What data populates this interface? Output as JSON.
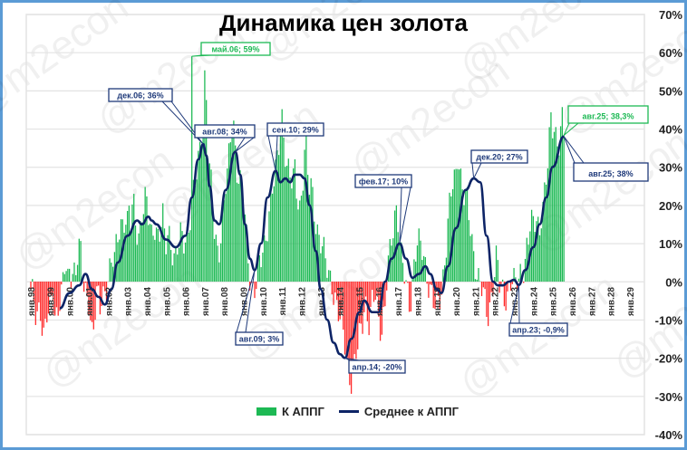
{
  "title": "Динамика цен золота",
  "legend": {
    "bars": "К АППГ",
    "line": "Среднее к АППГ"
  },
  "watermark": "@m2econ",
  "colors": {
    "positive_bar": "#1db954",
    "negative_bar": "#ff2a2a",
    "line": "#0d2466",
    "grid": "#e3e3e3",
    "border": "#5b9bd5",
    "ann_green": "#1db954",
    "ann_navy": "#1f3a7a"
  },
  "chart_data": {
    "type": "bar",
    "title": "Динамика цен золота",
    "xlabel": "",
    "ylabel": "",
    "ylim": [
      -40,
      70
    ],
    "yticks": [
      "70%",
      "60%",
      "50%",
      "40%",
      "30%",
      "20%",
      "10%",
      "0%",
      "-10%",
      "-20%",
      "-30%",
      "-40%"
    ],
    "y_axis_position": "right",
    "grid": true,
    "legend_position": "bottom",
    "x_ticks": [
      "янв.98",
      "янв.99",
      "янв.00",
      "янв.01",
      "янв.02",
      "янв.03",
      "янв.04",
      "янв.05",
      "янв.06",
      "янв.07",
      "янв.08",
      "янв.09",
      "янв.10",
      "янв.11",
      "янв.12",
      "янв.13",
      "янв.14",
      "янв.15",
      "янв.16",
      "янв.17",
      "янв.18",
      "янв.19",
      "янв.20",
      "янв.21",
      "янв.22",
      "янв.23",
      "янв.24",
      "янв.25",
      "янв.26",
      "янв.27",
      "янв.28",
      "янв.29"
    ],
    "x_start": "янв.98",
    "frequency": "monthly",
    "series": [
      {
        "name": "К АППГ",
        "type": "bar",
        "yearly_values": [
          [
            -2,
            -4,
            -8,
            -12,
            -9,
            -6,
            -10,
            -13,
            -9,
            -7,
            -11,
            -5
          ],
          [
            -6,
            -10,
            -8,
            -4,
            -3,
            -1,
            4,
            2,
            -2,
            3,
            1,
            4
          ],
          [
            4,
            8,
            9,
            7,
            -2,
            -4,
            -5,
            -3,
            -8,
            -12,
            -10,
            -6
          ],
          [
            -3,
            -9,
            -6,
            -4,
            -2,
            1,
            3,
            5,
            6,
            4,
            8,
            12
          ],
          [
            14,
            16,
            18,
            17,
            15,
            19,
            13,
            20,
            18,
            14,
            12,
            16
          ],
          [
            20,
            18,
            22,
            17,
            14,
            12,
            15,
            16,
            13,
            12,
            14,
            16
          ],
          [
            11,
            9,
            14,
            12,
            10,
            7,
            6,
            8,
            9,
            12,
            10,
            12
          ],
          [
            13,
            15,
            18,
            20,
            24,
            26,
            30,
            35,
            40,
            45,
            59,
            38
          ],
          [
            30,
            25,
            18,
            12,
            10,
            8,
            12,
            16,
            20,
            25,
            28,
            33
          ],
          [
            40,
            44,
            36,
            30,
            28,
            25,
            22,
            18,
            12,
            6,
            2,
            0
          ],
          [
            -2,
            -1,
            1,
            3,
            5,
            8,
            10,
            14,
            18,
            22,
            24,
            26
          ],
          [
            28,
            32,
            38,
            45,
            40,
            35,
            30,
            28,
            26,
            24,
            30,
            25
          ],
          [
            22,
            20,
            25,
            30,
            40,
            27,
            24,
            25,
            22,
            18,
            15,
            12
          ],
          [
            10,
            8,
            6,
            4,
            3,
            2,
            1,
            -2,
            -5,
            -8,
            -10,
            -12
          ],
          [
            -13,
            -15,
            -18,
            -22,
            -25,
            -27,
            -24,
            -20,
            -18,
            -14,
            -10,
            -8
          ],
          [
            -4,
            -8,
            -12,
            -10,
            -6,
            -4,
            -3,
            -8,
            -10,
            -12,
            -9,
            -6
          ],
          [
            2,
            5,
            10,
            14,
            18,
            21,
            16,
            8,
            4,
            1,
            -2,
            -4
          ],
          [
            -6,
            -2,
            4,
            8,
            10,
            9,
            8,
            7,
            5,
            3,
            1,
            -1
          ],
          [
            -3,
            -6,
            -8,
            -7,
            -5,
            -3,
            2,
            8,
            12,
            18,
            22,
            24
          ],
          [
            25,
            28,
            35,
            30,
            27,
            24,
            22,
            20,
            15,
            12,
            8,
            6
          ],
          [
            4,
            2,
            0,
            -2,
            -5,
            -9,
            -10,
            -7,
            -3,
            2,
            5,
            8
          ],
          [
            -1,
            -3,
            -4,
            -6,
            -3,
            -2,
            1,
            2,
            0,
            -2,
            -1,
            0
          ],
          [
            2,
            4,
            6,
            10,
            12,
            15,
            14,
            13,
            17,
            15,
            14,
            20
          ],
          [
            22,
            24,
            28,
            35,
            41,
            40,
            42,
            38,
            36,
            40,
            42,
            38
          ]
        ],
        "note": "values approximate, read off chart; rows correspond to groups of months from янв.98 onward compressed at ~14-month resolution"
      },
      {
        "name": "Среднее к АППГ",
        "type": "line"
      }
    ],
    "annotations": [
      {
        "label": "май.06; 59%",
        "series": "К АППГ",
        "x": "май.06",
        "value": 59,
        "color": "green"
      },
      {
        "label": "дек.06; 36%",
        "series": "Среднее к АППГ",
        "x": "дек.06",
        "value": 36,
        "color": "navy"
      },
      {
        "label": "авг.08; 34%",
        "series": "Среднее к АППГ",
        "x": "авг.08",
        "value": 34,
        "color": "navy"
      },
      {
        "label": "авг.09; 3%",
        "series": "Среднее к АППГ",
        "x": "авг.09",
        "value": 3,
        "color": "navy"
      },
      {
        "label": "сен.10; 29%",
        "series": "Среднее к АППГ",
        "x": "сен.10",
        "value": 29,
        "color": "navy"
      },
      {
        "label": "апр.14; -20%",
        "series": "Среднее к АППГ",
        "x": "апр.14",
        "value": -20,
        "color": "navy"
      },
      {
        "label": "фев.17; 10%",
        "series": "Среднее к АППГ",
        "x": "фев.17",
        "value": 10,
        "color": "navy"
      },
      {
        "label": "дек.20; 27%",
        "series": "Среднее к АППГ",
        "x": "дек.20",
        "value": 27,
        "color": "navy"
      },
      {
        "label": "апр.23; -0,9%",
        "series": "Среднее к АППГ",
        "x": "апр.23",
        "value": -0.9,
        "color": "navy"
      },
      {
        "label": "авг.25; 38,3%",
        "series": "К АППГ",
        "x": "авг.25",
        "value": 38.3,
        "color": "green"
      },
      {
        "label": "авг.25; 38%",
        "series": "Среднее к АППГ",
        "x": "авг.25",
        "value": 38,
        "color": "navy"
      }
    ],
    "line_points": [
      [
        "июл.99",
        -7
      ],
      [
        "янв.00",
        -3
      ],
      [
        "июл.00",
        -1
      ],
      [
        "ноя.00",
        2
      ],
      [
        "мар.01",
        -2
      ],
      [
        "июл.01",
        -4
      ],
      [
        "ноя.01",
        -6
      ],
      [
        "мар.02",
        -2
      ],
      [
        "июл.02",
        5
      ],
      [
        "янв.03",
        12
      ],
      [
        "июл.03",
        16
      ],
      [
        "окт.03",
        15
      ],
      [
        "фев.04",
        17
      ],
      [
        "апр.04",
        16
      ],
      [
        "июл.04",
        15
      ],
      [
        "янв.05",
        11
      ],
      [
        "июл.05",
        9
      ],
      [
        "янв.06",
        12
      ],
      [
        "май.06",
        22
      ],
      [
        "сен.06",
        32
      ],
      [
        "дек.06",
        36
      ],
      [
        "фев.07",
        33
      ],
      [
        "апр.07",
        25
      ],
      [
        "июл.07",
        16
      ],
      [
        "окт.07",
        15
      ],
      [
        "фев.08",
        24
      ],
      [
        "авг.08",
        34
      ],
      [
        "ноя.08",
        28
      ],
      [
        "фев.09",
        15
      ],
      [
        "май.09",
        6
      ],
      [
        "авг.09",
        3
      ],
      [
        "дек.09",
        10
      ],
      [
        "апр.10",
        22
      ],
      [
        "сен.10",
        29
      ],
      [
        "дек.10",
        26
      ],
      [
        "мар.11",
        27
      ],
      [
        "июн.11",
        26
      ],
      [
        "сен.11",
        28
      ],
      [
        "дек.11",
        28
      ],
      [
        "мар.12",
        27
      ],
      [
        "июн.12",
        20
      ],
      [
        "окт.12",
        8
      ],
      [
        "янв.13",
        -2
      ],
      [
        "май.13",
        -10
      ],
      [
        "сен.13",
        -16
      ],
      [
        "янв.14",
        -19
      ],
      [
        "апр.14",
        -20
      ],
      [
        "авг.14",
        -15
      ],
      [
        "янв.15",
        -8
      ],
      [
        "апр.15",
        -5
      ],
      [
        "сен.15",
        -8
      ],
      [
        "янв.16",
        -8
      ],
      [
        "май.16",
        0
      ],
      [
        "сен.16",
        6
      ],
      [
        "фев.17",
        10
      ],
      [
        "июн.17",
        6
      ],
      [
        "окт.17",
        1
      ],
      [
        "фев.18",
        2
      ],
      [
        "июн.18",
        4
      ],
      [
        "сен.18",
        2
      ],
      [
        "янв.19",
        -2
      ],
      [
        "апр.19",
        -3
      ],
      [
        "авг.19",
        4
      ],
      [
        "янв.20",
        14
      ],
      [
        "июл.20",
        24
      ],
      [
        "дек.20",
        27
      ],
      [
        "апр.21",
        26
      ],
      [
        "авг.21",
        12
      ],
      [
        "дек.21",
        0
      ],
      [
        "мар.22",
        -1
      ],
      [
        "июн.22",
        -1
      ],
      [
        "окт.22",
        0
      ],
      [
        "янв.23",
        0.5
      ],
      [
        "апр.23",
        -0.9
      ],
      [
        "авг.23",
        3
      ],
      [
        "янв.24",
        9
      ],
      [
        "май.24",
        15
      ],
      [
        "сен.24",
        22
      ],
      [
        "янв.25",
        30
      ],
      [
        "авг.25",
        38
      ]
    ]
  }
}
